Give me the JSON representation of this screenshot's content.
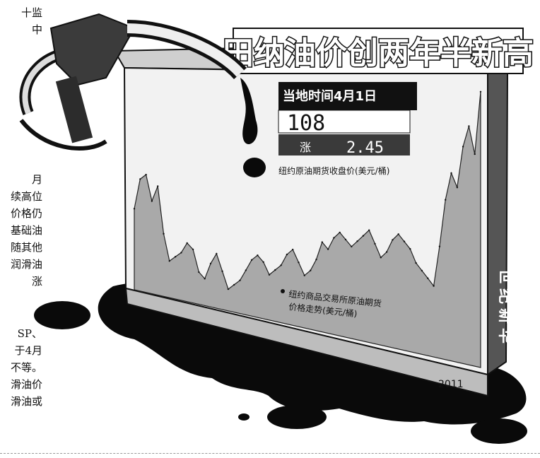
{
  "article_fragments": {
    "top": [
      "十监",
      "中"
    ],
    "middle": [
      "月",
      "续高位",
      "价格仍",
      "基础油",
      "随其他",
      "润滑油",
      "涨"
    ],
    "bottom": [
      "SP、",
      "于4月",
      "不等。",
      "滑油价",
      "滑油或"
    ]
  },
  "graphic": {
    "title": "田纳油价创两年半新高",
    "side_label": "世纪新华",
    "info_box": {
      "heading": "当地时间4月1日",
      "price": "108",
      "change_label": "涨",
      "change_value": "2.45",
      "unit_note": "纽约原油期货收盘价(美元/桶)"
    },
    "note_text": [
      "纽约商品交易所原油期货",
      "价格走势(美元/桶)"
    ],
    "year_label": "2011",
    "colors": {
      "ink": "#111111",
      "panel": "#dcdcdc",
      "oil": "#0a0a0a",
      "tank": "#f2f2f2"
    }
  },
  "chart_data": {
    "type": "area",
    "title": "田纳油价创两年半新高",
    "xlabel": "",
    "ylabel": "",
    "ylim": [
      70,
      110
    ],
    "x": [
      1,
      2,
      3,
      4,
      5,
      6,
      7,
      8,
      9,
      10,
      11,
      12,
      13,
      14,
      15,
      16,
      17,
      18,
      19,
      20,
      21,
      22,
      23,
      24,
      25,
      26,
      27,
      28,
      29,
      30,
      31,
      32,
      33,
      34,
      35,
      36,
      37,
      38,
      39,
      40,
      41,
      42,
      43,
      44,
      45,
      46,
      47,
      48,
      49,
      50,
      51,
      52,
      53,
      54,
      55,
      56,
      57,
      58,
      59,
      60
    ],
    "series": [
      {
        "values": [
          84,
          90,
          91,
          86,
          89,
          80,
          75,
          76,
          77,
          79,
          78,
          74,
          73,
          76,
          78,
          75,
          72,
          73,
          74,
          76,
          78,
          79,
          78,
          76,
          77,
          78,
          80,
          81,
          79,
          77,
          78,
          80,
          83,
          82,
          84,
          85,
          84,
          83,
          84,
          85,
          86,
          84,
          82,
          83,
          85,
          86,
          85,
          84,
          82,
          81,
          80,
          79,
          85,
          92,
          96,
          94,
          100,
          103,
          99,
          108
        ]
      }
    ]
  }
}
